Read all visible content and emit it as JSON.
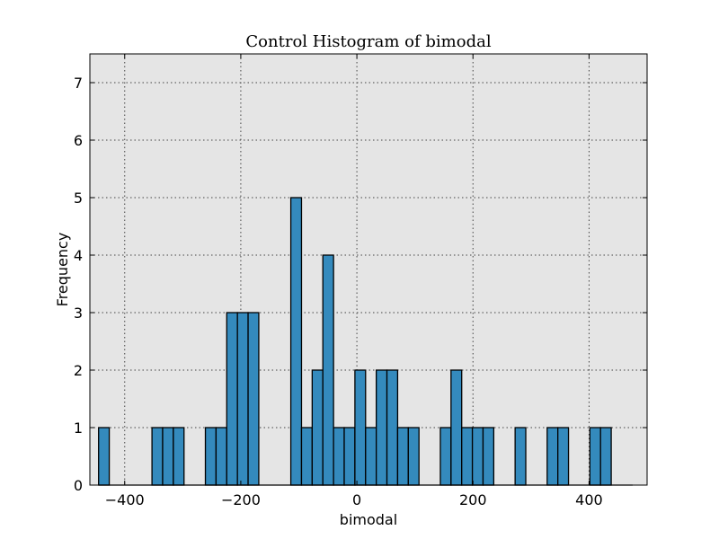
{
  "chart_data": {
    "type": "bar",
    "title": "Control Histogram of bimodal",
    "xlabel": "bimodal",
    "ylabel": "Frequency",
    "xlim": [
      -460,
      500
    ],
    "ylim": [
      0,
      7.5
    ],
    "xticks": [
      -400,
      -200,
      0,
      200,
      400
    ],
    "xtick_labels": [
      "−400",
      "−200",
      "0",
      "200",
      "400"
    ],
    "yticks": [
      0,
      1,
      2,
      3,
      4,
      5,
      6,
      7
    ],
    "ytick_labels": [
      "0",
      "1",
      "2",
      "3",
      "4",
      "5",
      "6",
      "7"
    ],
    "grid": true,
    "bar_color": "#348ABD",
    "background_color": "#E5E5E5",
    "bin_start": -445,
    "bin_width": 18.4,
    "counts": [
      1,
      0,
      0,
      0,
      0,
      1,
      1,
      1,
      0,
      0,
      1,
      1,
      3,
      3,
      3,
      0,
      0,
      0,
      5,
      1,
      2,
      4,
      1,
      1,
      2,
      1,
      2,
      2,
      1,
      1,
      0,
      0,
      1,
      2,
      1,
      1,
      1,
      0,
      0,
      1,
      0,
      0,
      1,
      1,
      0,
      0,
      1,
      1,
      0,
      0
    ]
  }
}
